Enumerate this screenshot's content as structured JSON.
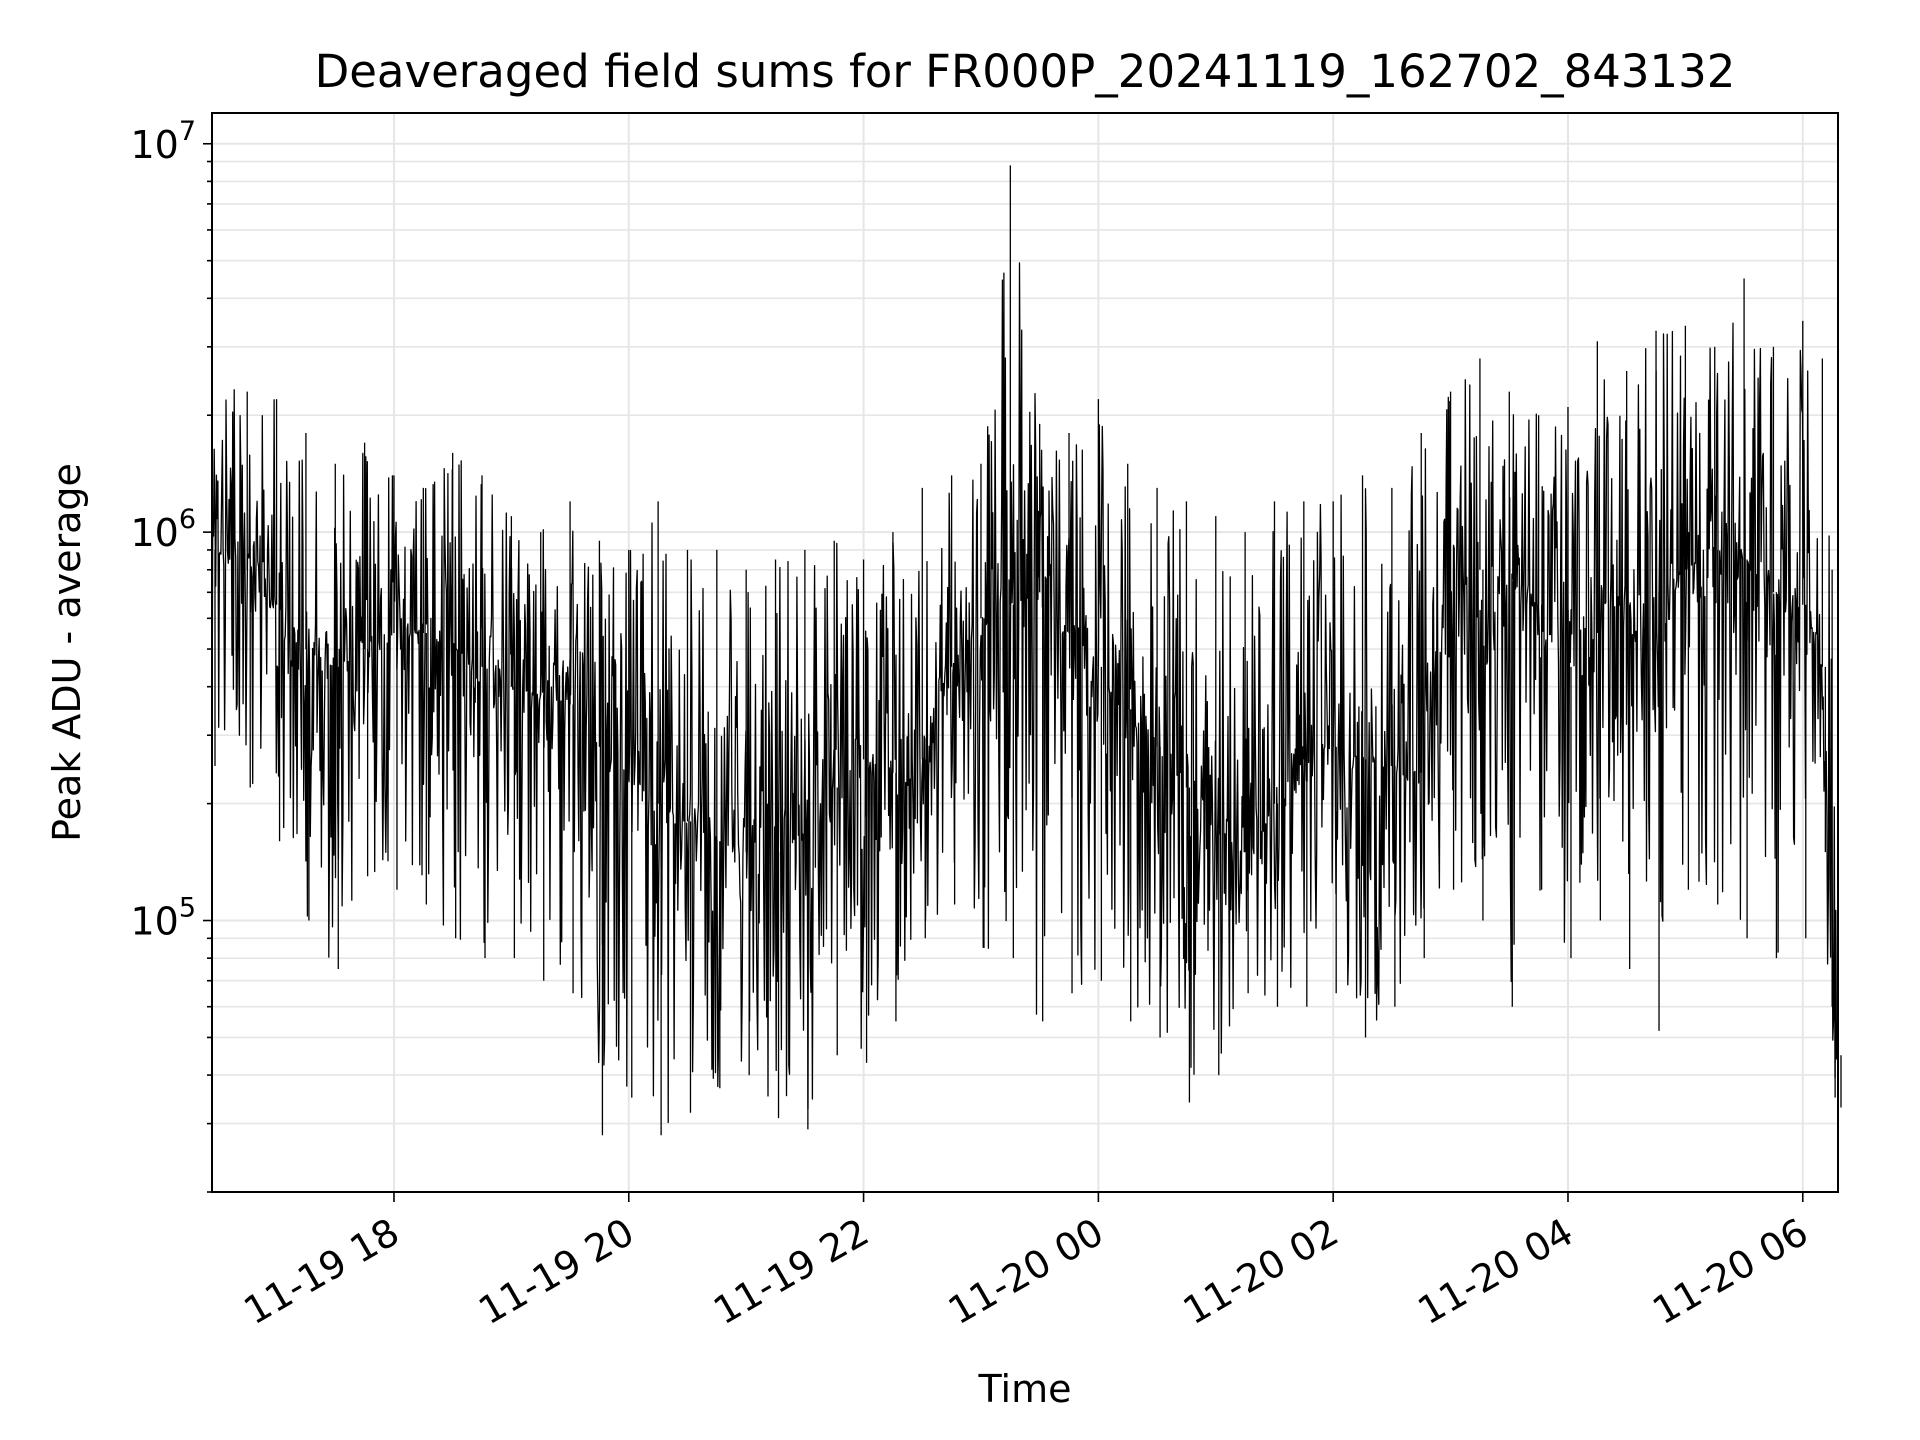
{
  "chart_data": {
    "type": "line",
    "title": "Deaveraged field sums for FR000P_20241119_162702_843132",
    "xlabel": "Time",
    "ylabel": "Peak ADU - average",
    "yscale": "log",
    "ylim": [
      20000,
      12000000
    ],
    "xlim": [
      "2024-11-19 16:27",
      "2024-11-20 06:18"
    ],
    "x_ticks": [
      "2024-11-19 18:00",
      "2024-11-19 20:00",
      "2024-11-19 22:00",
      "2024-11-20 00:00",
      "2024-11-20 02:00",
      "2024-11-20 04:00",
      "2024-11-20 06:00"
    ],
    "x_tick_labels": [
      "11-19 18",
      "11-19 20",
      "11-19 22",
      "11-20 00",
      "11-20 02",
      "11-20 04",
      "11-20 06"
    ],
    "y_ticks": [
      100000,
      1000000,
      10000000
    ],
    "y_tick_labels": [
      {
        "base": "10",
        "exp": "5"
      },
      {
        "base": "10",
        "exp": "6"
      },
      {
        "base": "10",
        "exp": "7"
      }
    ],
    "grid": true,
    "line_color": "#000000",
    "grid_color": "#e6e6e6",
    "series": [
      {
        "x": [
          "2024-11-19 16:27",
          "2024-11-19 16:45",
          "2024-11-19 17:00",
          "2024-11-19 17:15",
          "2024-11-19 17:30",
          "2024-11-19 17:45",
          "2024-11-19 18:00",
          "2024-11-19 18:15",
          "2024-11-19 18:30",
          "2024-11-19 18:45",
          "2024-11-19 19:00",
          "2024-11-19 19:15",
          "2024-11-19 19:30",
          "2024-11-19 19:45",
          "2024-11-19 20:00",
          "2024-11-19 20:15",
          "2024-11-19 20:30",
          "2024-11-19 20:45",
          "2024-11-19 21:00",
          "2024-11-19 21:15",
          "2024-11-19 21:30",
          "2024-11-19 21:45",
          "2024-11-19 22:00",
          "2024-11-19 22:15",
          "2024-11-19 22:30",
          "2024-11-19 22:45",
          "2024-11-19 23:00",
          "2024-11-19 23:15",
          "2024-11-19 23:30",
          "2024-11-19 23:45",
          "2024-11-20 00:00",
          "2024-11-20 00:15",
          "2024-11-20 00:30",
          "2024-11-20 00:45",
          "2024-11-20 01:00",
          "2024-11-20 01:15",
          "2024-11-20 01:30",
          "2024-11-20 01:45",
          "2024-11-20 02:00",
          "2024-11-20 02:15",
          "2024-11-20 02:30",
          "2024-11-20 02:45",
          "2024-11-20 03:00",
          "2024-11-20 03:15",
          "2024-11-20 03:30",
          "2024-11-20 03:45",
          "2024-11-20 04:00",
          "2024-11-20 04:15",
          "2024-11-20 04:30",
          "2024-11-20 04:45",
          "2024-11-20 05:00",
          "2024-11-20 05:15",
          "2024-11-20 05:30",
          "2024-11-20 05:45",
          "2024-11-20 06:00",
          "2024-11-20 06:10",
          "2024-11-20 06:15",
          "2024-11-20 06:18"
        ],
        "median": [
          900000,
          800000,
          650000,
          500000,
          450000,
          500000,
          550000,
          550000,
          500000,
          450000,
          400000,
          380000,
          360000,
          280000,
          230000,
          200000,
          180000,
          160000,
          150000,
          150000,
          170000,
          220000,
          260000,
          240000,
          260000,
          450000,
          600000,
          650000,
          700000,
          550000,
          450000,
          350000,
          280000,
          220000,
          170000,
          150000,
          200000,
          260000,
          280000,
          260000,
          250000,
          240000,
          700000,
          800000,
          750000,
          650000,
          450000,
          550000,
          650000,
          700000,
          800000,
          900000,
          850000,
          700000,
          650000,
          450000,
          60000,
          45000
        ],
        "upper": [
          2400000,
          2300000,
          2200000,
          1800000,
          1500000,
          1700000,
          1400000,
          1300000,
          1600000,
          1400000,
          1100000,
          1000000,
          1200000,
          950000,
          900000,
          1200000,
          900000,
          900000,
          800000,
          850000,
          900000,
          950000,
          850000,
          1000000,
          1300000,
          1400000,
          1500000,
          8800000,
          1900000,
          1800000,
          2200000,
          1500000,
          1300000,
          1200000,
          1100000,
          1000000,
          1200000,
          1200000,
          1200000,
          1400000,
          1300000,
          1800000,
          2300000,
          2800000,
          2300000,
          2000000,
          2100000,
          3100000,
          2600000,
          3300000,
          3400000,
          3000000,
          4500000,
          3000000,
          3500000,
          2800000,
          800000,
          80000
        ],
        "lower": [
          250000,
          220000,
          160000,
          100000,
          75000,
          130000,
          120000,
          110000,
          90000,
          80000,
          80000,
          70000,
          65000,
          28000,
          35000,
          28000,
          32000,
          37000,
          40000,
          31000,
          29000,
          45000,
          43000,
          55000,
          90000,
          110000,
          85000,
          80000,
          55000,
          65000,
          70000,
          55000,
          50000,
          34000,
          40000,
          65000,
          60000,
          60000,
          65000,
          50000,
          60000,
          80000,
          120000,
          100000,
          60000,
          120000,
          80000,
          100000,
          75000,
          52000,
          120000,
          110000,
          90000,
          80000,
          90000,
          150000,
          35000,
          33000
        ]
      }
    ]
  }
}
